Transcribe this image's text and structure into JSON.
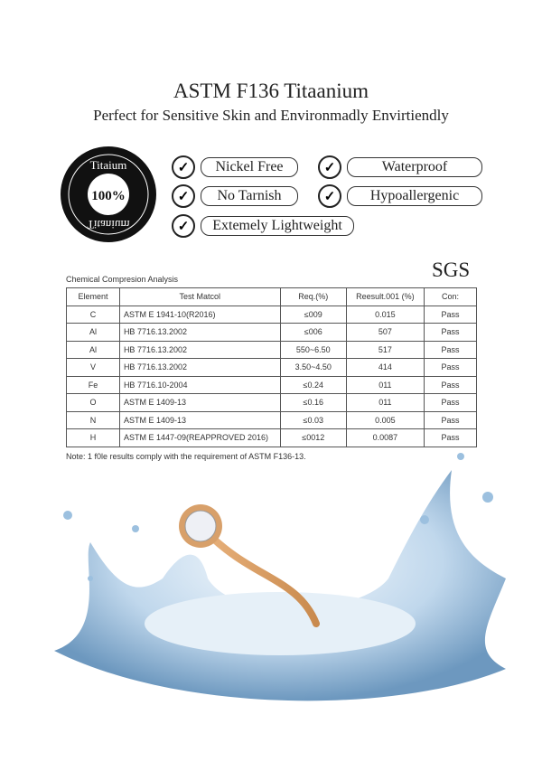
{
  "header": {
    "title": "ASTM F136 Titaanium",
    "subtitle": "Perfect for Sensitive Skin and Environmadly Envirtiendly"
  },
  "badge": {
    "top": "Titaium",
    "center": "100%",
    "bottom": "Titanium"
  },
  "features": [
    "Nickel Free",
    "Waterproof",
    "No Tarnish",
    "Hypoallergenic",
    "Extemely Lightweight"
  ],
  "table": {
    "caption": "Chemical Compresion Analysis",
    "logo": "SGS",
    "headers": [
      "Element",
      "Test Matcol",
      "Req.(%)",
      "Reesult.001 (%)",
      "Con:"
    ],
    "rows": [
      [
        "C",
        "ASTM E 1941-10(R2016)",
        "≤009",
        "0.015",
        "Pass"
      ],
      [
        "Al",
        "HB 7716.13.2002",
        "≤006",
        "507",
        "Pass"
      ],
      [
        "Al",
        "HB 7716.13.2002",
        "550~6.50",
        "517",
        "Pass"
      ],
      [
        "V",
        "HB 7716.13.2002",
        "3.50~4.50",
        "414",
        "Pass"
      ],
      [
        "Fe",
        "HB 7716.10-2004",
        "≤0.24",
        "011",
        "Pass"
      ],
      [
        "O",
        "ASTM E 1409-13",
        "≤0.16",
        "011",
        "Pass"
      ],
      [
        "N",
        "ASTM E 1409-13",
        "≤0.03",
        "0.005",
        "Pass"
      ],
      [
        "H",
        "ASTM E 1447-09(REAPPROVED 2016)",
        "≤0012",
        "0.0087",
        "Pass"
      ]
    ],
    "note": "Note: 1 f0le results comply with the requirement of ASTM F136-13."
  }
}
